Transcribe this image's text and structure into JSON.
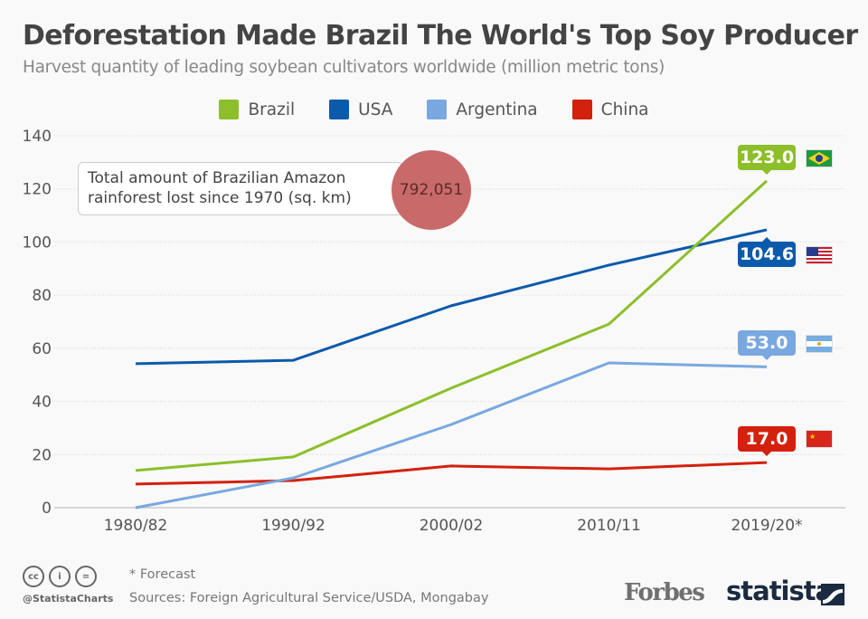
{
  "header": {
    "title": "Deforestation Made Brazil The World's Top Soy Producer",
    "subtitle": "Harvest quantity of leading soybean cultivators worldwide (million metric tons)"
  },
  "callout": {
    "text_line1": "Total amount of Brazilian Amazon",
    "text_line2": "rainforest lost since 1970 (sq. km)",
    "value": "792,051"
  },
  "end_labels": {
    "brazil": "123.0",
    "usa": "104.6",
    "argentina": "53.0",
    "china": "17.0"
  },
  "flags": [
    "brazil-flag",
    "usa-flag",
    "argentina-flag",
    "china-flag"
  ],
  "footer": {
    "cc_icons": [
      "cc-icon",
      "attribution-icon",
      "no-derivatives-icon"
    ],
    "handle": "@StatistaCharts",
    "note": "* Forecast",
    "sources": "Sources: Foreign Agricultural Service/USDA, Mongabay",
    "forbes_logo": "Forbes",
    "statista_logo": "statista"
  },
  "chart_data": {
    "type": "line",
    "title": "Deforestation Made Brazil The World's Top Soy Producer",
    "subtitle": "Harvest quantity of leading soybean cultivators worldwide (million metric tons)",
    "xlabel": "",
    "ylabel": "",
    "categories": [
      "1980/82",
      "1990/92",
      "2000/02",
      "2010/11",
      "2019/20*"
    ],
    "yticks": [
      0,
      20,
      40,
      60,
      80,
      100,
      120,
      140
    ],
    "ylim": [
      0,
      140
    ],
    "grid": true,
    "legend_position": "top-center",
    "series": [
      {
        "name": "Brazil",
        "color": "#8cbf2a",
        "values": [
          14.0,
          19.1,
          45.0,
          69.1,
          123.0
        ]
      },
      {
        "name": "USA",
        "color": "#0b5aab",
        "values": [
          54.2,
          55.5,
          76.0,
          91.3,
          104.6
        ]
      },
      {
        "name": "Argentina",
        "color": "#79a8e0",
        "values": [
          0.0,
          11.2,
          31.3,
          54.5,
          53.0
        ]
      },
      {
        "name": "China",
        "color": "#d3210d",
        "values": [
          8.9,
          10.2,
          15.7,
          14.6,
          17.0
        ]
      }
    ],
    "annotations": [
      "Total amount of Brazilian Amazon rainforest lost since 1970 (sq. km): 792,051",
      "* Forecast"
    ]
  }
}
